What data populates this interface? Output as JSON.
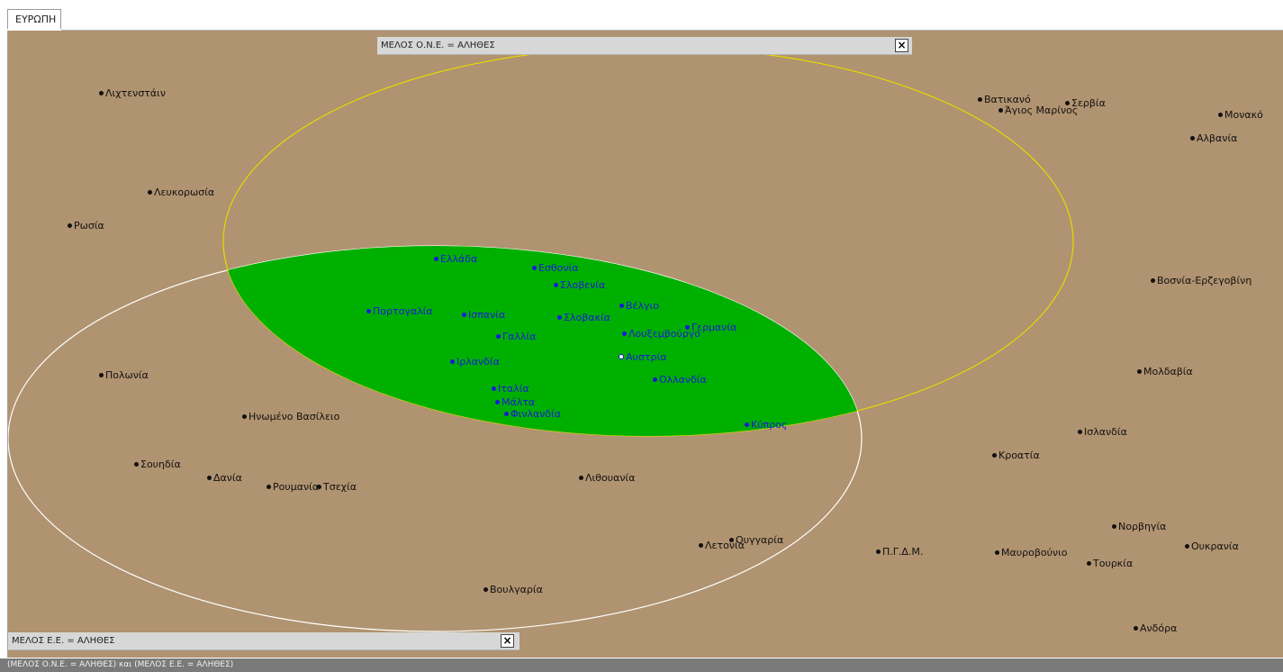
{
  "tab": {
    "label": "ΕΥΡΩΠΗ"
  },
  "sets": {
    "uno": {
      "label": "ΜΕΛΟΣ Ο.Ν.Ε. = ΑΛΗΘΕΣ",
      "close": "×"
    },
    "eu": {
      "label": "ΜΕΛΟΣ Ε.Ε. = ΑΛΗΘΕΣ",
      "close": "×"
    }
  },
  "colors": {
    "background": "#b09370",
    "intersection": "#00b000",
    "uno_outline": "#e8d800",
    "eu_outline": "#ffffff",
    "member_text": "#1a1ad8"
  },
  "countries": [
    {
      "name": "Ελλάδα",
      "in": true
    },
    {
      "name": "Εσθονία",
      "in": true
    },
    {
      "name": "Σλοβενία",
      "in": true
    },
    {
      "name": "Πορτογαλία",
      "in": true
    },
    {
      "name": "Ισπανία",
      "in": true
    },
    {
      "name": "Βέλγιο",
      "in": true
    },
    {
      "name": "Σλοβακία",
      "in": true
    },
    {
      "name": "Γερμανία",
      "in": true
    },
    {
      "name": "Γαλλία",
      "in": true
    },
    {
      "name": "Λουξεμβούργο",
      "in": true
    },
    {
      "name": "Αυστρία",
      "in": true,
      "selected": true
    },
    {
      "name": "Ιρλανδία",
      "in": true
    },
    {
      "name": "Ολλανδία",
      "in": true
    },
    {
      "name": "Ιταλία",
      "in": true
    },
    {
      "name": "Μάλτα",
      "in": true
    },
    {
      "name": "Φινλανδία",
      "in": true
    },
    {
      "name": "Κύπρος",
      "in": true
    },
    {
      "name": "Λιχτενστάιν",
      "in": false
    },
    {
      "name": "Λευκορωσία",
      "in": false
    },
    {
      "name": "Ρωσία",
      "in": false
    },
    {
      "name": "Πολωνία",
      "in": false
    },
    {
      "name": "Ηνωμένο Βασίλειο",
      "in": false
    },
    {
      "name": "Σουηδία",
      "in": false
    },
    {
      "name": "Δανία",
      "in": false
    },
    {
      "name": "Ρουμανία",
      "in": false
    },
    {
      "name": "Τσεχία",
      "in": false
    },
    {
      "name": "Λιθουανία",
      "in": false
    },
    {
      "name": "Λετονία",
      "in": false
    },
    {
      "name": "Ουγγαρία",
      "in": false
    },
    {
      "name": "Βουλγαρία",
      "in": false
    },
    {
      "name": "Βατικανό",
      "in": false
    },
    {
      "name": "Άγιος Μαρίνος",
      "in": false
    },
    {
      "name": "Σερβία",
      "in": false
    },
    {
      "name": "Μονακό",
      "in": false
    },
    {
      "name": "Αλβανία",
      "in": false
    },
    {
      "name": "Βοσνία-Ερζεγοβίνη",
      "in": false
    },
    {
      "name": "Μολδαβία",
      "in": false
    },
    {
      "name": "Ισλανδία",
      "in": false
    },
    {
      "name": "Κροατία",
      "in": false
    },
    {
      "name": "Νορβηγία",
      "in": false
    },
    {
      "name": "Ουκρανία",
      "in": false
    },
    {
      "name": "Π.Γ.Δ.Μ.",
      "in": false
    },
    {
      "name": "Μαυροβούνιο",
      "in": false
    },
    {
      "name": "Τουρκία",
      "in": false
    },
    {
      "name": "Ανδόρα",
      "in": false
    }
  ],
  "status": {
    "query": "(ΜΕΛΟΣ Ο.Ν.Ε. = ΑΛΗΘΕΣ) και (ΜΕΛΟΣ Ε.Ε. = ΑΛΗΘΕΣ)"
  }
}
